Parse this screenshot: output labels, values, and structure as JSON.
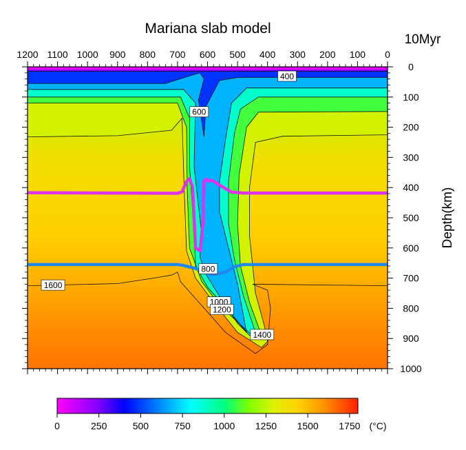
{
  "chart_data": {
    "type": "heatmap",
    "title": "Mariana slab model",
    "time_label": "10Myr",
    "xlabel": "",
    "ylabel": "Depth(km)",
    "x_ticks": [
      "1200",
      "1100",
      "1000",
      "900",
      "800",
      "700",
      "600",
      "500",
      "400",
      "300",
      "200",
      "100",
      "0"
    ],
    "y_ticks": [
      "0",
      "100",
      "200",
      "300",
      "400",
      "500",
      "600",
      "700",
      "800",
      "900",
      "1000"
    ],
    "xlim": [
      1200,
      0
    ],
    "ylim": [
      0,
      1000
    ],
    "colorbar": {
      "label": "(°C)",
      "range": [
        0,
        1800
      ],
      "ticks": [
        "0",
        "250",
        "500",
        "750",
        "1000",
        "1250",
        "1500",
        "1750"
      ],
      "stops": [
        {
          "t": 0,
          "color": "#ff00ff"
        },
        {
          "t": 250,
          "color": "#8000ff"
        },
        {
          "t": 400,
          "color": "#0000ff"
        },
        {
          "t": 600,
          "color": "#0080ff"
        },
        {
          "t": 800,
          "color": "#00ffff"
        },
        {
          "t": 1000,
          "color": "#00ff80"
        },
        {
          "t": 1150,
          "color": "#80ff00"
        },
        {
          "t": 1300,
          "color": "#e0f000"
        },
        {
          "t": 1450,
          "color": "#ffd000"
        },
        {
          "t": 1600,
          "color": "#ff9000"
        },
        {
          "t": 1800,
          "color": "#ff2000"
        }
      ]
    },
    "contour_labels": [
      "400",
      "600",
      "800",
      "1000",
      "1200",
      "1400",
      "1600"
    ],
    "phase_boundaries": [
      {
        "name": "410",
        "color": "#dd33ee",
        "points": [
          [
            1200,
            417
          ],
          [
            700,
            419
          ],
          [
            685,
            414
          ],
          [
            670,
            380
          ],
          [
            660,
            370
          ],
          [
            650,
            400
          ],
          [
            640,
            600
          ],
          [
            625,
            610
          ],
          [
            615,
            510
          ],
          [
            612,
            380
          ],
          [
            605,
            372
          ],
          [
            598,
            378
          ],
          [
            585,
            376
          ],
          [
            560,
            392
          ],
          [
            520,
            415
          ],
          [
            480,
            418
          ],
          [
            0,
            418
          ]
        ]
      },
      {
        "name": "660",
        "color": "#2288ee",
        "points": [
          [
            1200,
            655
          ],
          [
            700,
            655
          ],
          [
            680,
            658
          ],
          [
            640,
            668
          ],
          [
            610,
            680
          ],
          [
            580,
            688
          ],
          [
            540,
            680
          ],
          [
            510,
            662
          ],
          [
            480,
            655
          ],
          [
            0,
            655
          ]
        ]
      }
    ],
    "isotherms": [
      {
        "label": "400",
        "points": [
          [
            1200,
            15
          ],
          [
            500,
            15
          ],
          [
            0,
            15
          ]
        ]
      },
      {
        "label": "600",
        "points": [
          [
            1200,
            55
          ],
          [
            740,
            55
          ],
          [
            660,
            30
          ],
          [
            625,
            20
          ],
          [
            612,
            40
          ],
          [
            630,
            110
          ],
          [
            612,
            230
          ],
          [
            605,
            130
          ],
          [
            560,
            45
          ],
          [
            500,
            35
          ],
          [
            0,
            35
          ]
        ]
      },
      {
        "label": "800",
        "points": [
          [
            1200,
            75
          ],
          [
            680,
            75
          ],
          [
            640,
            120
          ],
          [
            645,
            330
          ],
          [
            620,
            550
          ],
          [
            625,
            630
          ],
          [
            610,
            680
          ],
          [
            560,
            760
          ],
          [
            500,
            850
          ],
          [
            470,
            880
          ],
          [
            500,
            720
          ],
          [
            530,
            600
          ],
          [
            560,
            480
          ],
          [
            560,
            380
          ],
          [
            540,
            240
          ],
          [
            520,
            120
          ],
          [
            470,
            70
          ],
          [
            0,
            70
          ]
        ]
      },
      {
        "label": "1000",
        "points": [
          [
            1200,
            100
          ],
          [
            690,
            100
          ],
          [
            660,
            170
          ],
          [
            660,
            330
          ],
          [
            645,
            550
          ],
          [
            640,
            660
          ],
          [
            600,
            730
          ],
          [
            520,
            820
          ],
          [
            460,
            890
          ],
          [
            440,
            880
          ],
          [
            480,
            760
          ],
          [
            510,
            640
          ],
          [
            530,
            520
          ],
          [
            530,
            380
          ],
          [
            510,
            220
          ],
          [
            490,
            140
          ],
          [
            430,
            100
          ],
          [
            0,
            100
          ]
        ]
      },
      {
        "label": "1200",
        "points": [
          [
            1200,
            120
          ],
          [
            700,
            120
          ],
          [
            670,
            200
          ],
          [
            668,
            400
          ],
          [
            660,
            600
          ],
          [
            620,
            710
          ],
          [
            560,
            790
          ],
          [
            440,
            900
          ],
          [
            420,
            890
          ],
          [
            460,
            780
          ],
          [
            490,
            660
          ],
          [
            500,
            520
          ],
          [
            495,
            360
          ],
          [
            470,
            200
          ],
          [
            430,
            150
          ],
          [
            0,
            148
          ]
        ]
      },
      {
        "label": "1400",
        "points": [
          [
            1200,
            232
          ],
          [
            900,
            228
          ],
          [
            720,
            210
          ],
          [
            685,
            170
          ],
          [
            678,
            400
          ],
          [
            670,
            610
          ],
          [
            640,
            700
          ],
          [
            580,
            780
          ],
          [
            500,
            880
          ],
          [
            420,
            930
          ],
          [
            400,
            910
          ],
          [
            410,
            860
          ],
          [
            440,
            750
          ],
          [
            460,
            560
          ],
          [
            460,
            400
          ],
          [
            440,
            250
          ],
          [
            350,
            230
          ],
          [
            0,
            225
          ]
        ]
      },
      {
        "label": "1600",
        "points": [
          [
            1200,
            725
          ],
          [
            900,
            718
          ],
          [
            780,
            700
          ],
          [
            720,
            690
          ],
          [
            700,
            680
          ],
          [
            690,
            712
          ],
          [
            620,
            790
          ],
          [
            540,
            880
          ],
          [
            440,
            950
          ],
          [
            400,
            920
          ],
          [
            390,
            800
          ],
          [
            400,
            740
          ],
          [
            450,
            720
          ],
          [
            0,
            725
          ]
        ]
      }
    ],
    "contour_label_positions": [
      {
        "label": "400",
        "x": 335,
        "y": 32
      },
      {
        "label": "600",
        "x": 628,
        "y": 150
      },
      {
        "label": "800",
        "x": 598,
        "y": 670
      },
      {
        "label": "1000",
        "x": 562,
        "y": 780
      },
      {
        "label": "1200",
        "x": 552,
        "y": 805
      },
      {
        "label": "1400",
        "x": 418,
        "y": 888
      },
      {
        "label": "1600",
        "x": 1115,
        "y": 724
      }
    ]
  }
}
